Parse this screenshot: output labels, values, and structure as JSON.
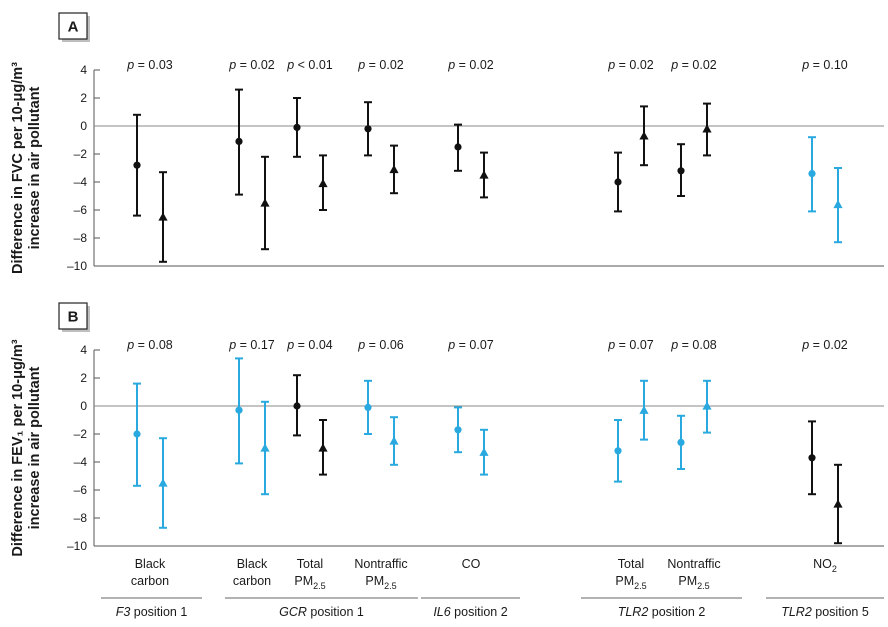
{
  "chart_data": {
    "type": "errorbar",
    "colors": {
      "black": "#111111",
      "blue": "#29a9df",
      "axis": "#555555"
    },
    "panels": [
      {
        "id": "A",
        "label": "A",
        "ylabel_line1": "Difference in FVC per 10-μg/m³",
        "ylabel_line2": "increase in air pollutant",
        "ylim": [
          -10,
          4
        ],
        "yticks": [
          "4",
          "2",
          "0",
          "–2",
          "–4",
          "–6",
          "–8",
          "–10"
        ],
        "pvalues": [
          {
            "group": 0,
            "text": "p = 0.03",
            "p": "p",
            "rest": " = 0.03"
          },
          {
            "group": 1,
            "text": "p = 0.02",
            "p": "p",
            "rest": " = 0.02"
          },
          {
            "group": 2,
            "text": "p < 0.01",
            "p": "p",
            "rest": " < 0.01"
          },
          {
            "group": 3,
            "text": "p = 0.02",
            "p": "p",
            "rest": " = 0.02"
          },
          {
            "group": 4,
            "text": "p = 0.02",
            "p": "p",
            "rest": " = 0.02"
          },
          {
            "group": 5,
            "text": "p = 0.02",
            "p": "p",
            "rest": " = 0.02"
          },
          {
            "group": 6,
            "text": "p = 0.02",
            "p": "p",
            "rest": " = 0.02"
          },
          {
            "group": 7,
            "text": "p = 0.10",
            "p": "p",
            "rest": " = 0.10"
          }
        ],
        "points": [
          {
            "group": 0,
            "marker": "circle",
            "color": "black",
            "y": -2.8,
            "lo": -6.4,
            "hi": 0.8
          },
          {
            "group": 0,
            "marker": "triangle",
            "color": "black",
            "y": -6.5,
            "lo": -9.7,
            "hi": -3.3
          },
          {
            "group": 1,
            "marker": "circle",
            "color": "black",
            "y": -1.1,
            "lo": -4.9,
            "hi": 2.6
          },
          {
            "group": 1,
            "marker": "triangle",
            "color": "black",
            "y": -5.5,
            "lo": -8.8,
            "hi": -2.2
          },
          {
            "group": 2,
            "marker": "circle",
            "color": "black",
            "y": -0.1,
            "lo": -2.2,
            "hi": 2.0
          },
          {
            "group": 2,
            "marker": "triangle",
            "color": "black",
            "y": -4.1,
            "lo": -6.0,
            "hi": -2.1
          },
          {
            "group": 3,
            "marker": "circle",
            "color": "black",
            "y": -0.2,
            "lo": -2.1,
            "hi": 1.7
          },
          {
            "group": 3,
            "marker": "triangle",
            "color": "black",
            "y": -3.1,
            "lo": -4.8,
            "hi": -1.4
          },
          {
            "group": 4,
            "marker": "circle",
            "color": "black",
            "y": -1.5,
            "lo": -3.2,
            "hi": 0.1
          },
          {
            "group": 4,
            "marker": "triangle",
            "color": "black",
            "y": -3.5,
            "lo": -5.1,
            "hi": -1.9
          },
          {
            "group": 5,
            "marker": "circle",
            "color": "black",
            "y": -4.0,
            "lo": -6.1,
            "hi": -1.9
          },
          {
            "group": 5,
            "marker": "triangle",
            "color": "black",
            "y": -0.7,
            "lo": -2.8,
            "hi": 1.4
          },
          {
            "group": 6,
            "marker": "circle",
            "color": "black",
            "y": -3.2,
            "lo": -5.0,
            "hi": -1.3
          },
          {
            "group": 6,
            "marker": "triangle",
            "color": "black",
            "y": -0.2,
            "lo": -2.1,
            "hi": 1.6
          },
          {
            "group": 7,
            "marker": "circle",
            "color": "blue",
            "y": -3.4,
            "lo": -6.1,
            "hi": -0.8
          },
          {
            "group": 7,
            "marker": "triangle",
            "color": "blue",
            "y": -5.6,
            "lo": -8.3,
            "hi": -3.0
          }
        ]
      },
      {
        "id": "B",
        "label": "B",
        "ylabel_line1": "Difference in FEV₁ per 10-μg/m³",
        "ylabel_line2": "increase in air pollutant",
        "ylim": [
          -10,
          4
        ],
        "yticks": [
          "4",
          "2",
          "0",
          "–2",
          "–4",
          "–6",
          "–8",
          "–10"
        ],
        "pvalues": [
          {
            "group": 0,
            "text": "p = 0.08",
            "p": "p",
            "rest": " = 0.08"
          },
          {
            "group": 1,
            "text": "p = 0.17",
            "p": "p",
            "rest": " = 0.17"
          },
          {
            "group": 2,
            "text": "p = 0.04",
            "p": "p",
            "rest": " = 0.04"
          },
          {
            "group": 3,
            "text": "p = 0.06",
            "p": "p",
            "rest": " = 0.06"
          },
          {
            "group": 4,
            "text": "p = 0.07",
            "p": "p",
            "rest": " = 0.07"
          },
          {
            "group": 5,
            "text": "p = 0.07",
            "p": "p",
            "rest": " = 0.07"
          },
          {
            "group": 6,
            "text": "p = 0.08",
            "p": "p",
            "rest": " = 0.08"
          },
          {
            "group": 7,
            "text": "p = 0.02",
            "p": "p",
            "rest": " = 0.02"
          }
        ],
        "points": [
          {
            "group": 0,
            "marker": "circle",
            "color": "blue",
            "y": -2.0,
            "lo": -5.7,
            "hi": 1.6
          },
          {
            "group": 0,
            "marker": "triangle",
            "color": "blue",
            "y": -5.5,
            "lo": -8.7,
            "hi": -2.3
          },
          {
            "group": 1,
            "marker": "circle",
            "color": "blue",
            "y": -0.3,
            "lo": -4.1,
            "hi": 3.4
          },
          {
            "group": 1,
            "marker": "triangle",
            "color": "blue",
            "y": -3.0,
            "lo": -6.3,
            "hi": 0.3
          },
          {
            "group": 2,
            "marker": "circle",
            "color": "black",
            "y": 0.0,
            "lo": -2.1,
            "hi": 2.2
          },
          {
            "group": 2,
            "marker": "triangle",
            "color": "black",
            "y": -3.0,
            "lo": -4.9,
            "hi": -1.0
          },
          {
            "group": 3,
            "marker": "circle",
            "color": "blue",
            "y": -0.1,
            "lo": -2.0,
            "hi": 1.8
          },
          {
            "group": 3,
            "marker": "triangle",
            "color": "blue",
            "y": -2.5,
            "lo": -4.2,
            "hi": -0.8
          },
          {
            "group": 4,
            "marker": "circle",
            "color": "blue",
            "y": -1.7,
            "lo": -3.3,
            "hi": -0.1
          },
          {
            "group": 4,
            "marker": "triangle",
            "color": "blue",
            "y": -3.3,
            "lo": -4.9,
            "hi": -1.7
          },
          {
            "group": 5,
            "marker": "circle",
            "color": "blue",
            "y": -3.2,
            "lo": -5.4,
            "hi": -1.0
          },
          {
            "group": 5,
            "marker": "triangle",
            "color": "blue",
            "y": -0.3,
            "lo": -2.4,
            "hi": 1.8
          },
          {
            "group": 6,
            "marker": "circle",
            "color": "blue",
            "y": -2.6,
            "lo": -4.5,
            "hi": -0.7
          },
          {
            "group": 6,
            "marker": "triangle",
            "color": "blue",
            "y": 0.0,
            "lo": -1.9,
            "hi": 1.8
          },
          {
            "group": 7,
            "marker": "circle",
            "color": "black",
            "y": -3.7,
            "lo": -6.3,
            "hi": -1.1
          },
          {
            "group": 7,
            "marker": "triangle",
            "color": "black",
            "y": -7.0,
            "lo": -9.8,
            "hi": -4.2
          }
        ]
      }
    ],
    "categories": [
      {
        "line1": "Black",
        "line2": "carbon",
        "sub": ""
      },
      {
        "line1": "Black",
        "line2": "carbon",
        "sub": ""
      },
      {
        "line1": "Total",
        "line2": "PM",
        "sub": "2.5"
      },
      {
        "line1": "Nontraffic",
        "line2": "PM",
        "sub": "2.5"
      },
      {
        "line1": "CO",
        "line2": "",
        "sub": ""
      },
      {
        "line1": "Total",
        "line2": "PM",
        "sub": "2.5"
      },
      {
        "line1": "Nontraffic",
        "line2": "PM",
        "sub": "2.5"
      },
      {
        "line1": "NO",
        "line2": "",
        "sub": "2",
        "inline_sub": true
      }
    ],
    "groups": [
      {
        "gene": "F3",
        "rest": " position 1",
        "label": "F3 position 1",
        "from": 0,
        "to": 0
      },
      {
        "gene": "GCR",
        "rest": " position 1",
        "label": "GCR position 1",
        "from": 1,
        "to": 3
      },
      {
        "gene": "IL6",
        "rest": " position 2",
        "label": "IL6 position 2",
        "from": 4,
        "to": 4
      },
      {
        "gene": "TLR2",
        "rest": " position 2",
        "label": "TLR2 position 2",
        "from": 5,
        "to": 6
      },
      {
        "gene": "TLR2",
        "rest": " position 5",
        "label": "TLR2 position 5",
        "from": 7,
        "to": 7
      }
    ]
  }
}
